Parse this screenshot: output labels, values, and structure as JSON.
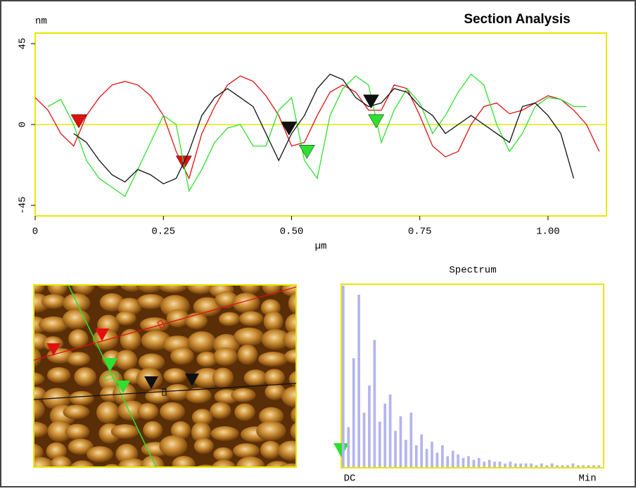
{
  "title": "Section Analysis",
  "chart_data": [
    {
      "type": "line",
      "ylabel": "nm",
      "xlabel": "µm",
      "x": [
        0,
        0.025,
        0.05,
        0.075,
        0.1,
        0.125,
        0.15,
        0.175,
        0.2,
        0.225,
        0.25,
        0.275,
        0.3,
        0.325,
        0.35,
        0.375,
        0.4,
        0.425,
        0.45,
        0.475,
        0.5,
        0.525,
        0.55,
        0.575,
        0.6,
        0.625,
        0.65,
        0.675,
        0.7,
        0.725,
        0.75,
        0.775,
        0.8,
        0.825,
        0.85,
        0.875,
        0.9,
        0.925,
        0.95,
        0.975,
        1.0,
        1.025,
        1.05,
        1.075,
        1.1
      ],
      "series": [
        {
          "color": "#e01010",
          "values": [
            15,
            8,
            -5,
            -12,
            5,
            15,
            22,
            24,
            22,
            16,
            5,
            -15,
            -30,
            -5,
            10,
            22,
            27,
            24,
            16,
            5,
            -12,
            -10,
            5,
            18,
            22,
            18,
            8,
            8,
            22,
            20,
            5,
            -12,
            -18,
            -15,
            0,
            10,
            12,
            6,
            8,
            12,
            16,
            14,
            8,
            0,
            -15
          ],
          "cursor_x": [
            0.085,
            0.29
          ],
          "cursor_y": [
            2,
            -21
          ]
        },
        {
          "color": "#30e030",
          "values": [
            null,
            10,
            14,
            0,
            -20,
            -30,
            -35,
            -40,
            -25,
            -10,
            5,
            0,
            -37,
            -25,
            -10,
            -2,
            0,
            -12,
            -12,
            8,
            15,
            -20,
            -30,
            5,
            20,
            27,
            22,
            -10,
            8,
            20,
            12,
            -5,
            5,
            18,
            28,
            22,
            0,
            -15,
            -5,
            10,
            15,
            14,
            10,
            10,
            null
          ],
          "cursor_x": [
            0.53,
            0.665
          ],
          "cursor_y": [
            -15,
            2
          ]
        },
        {
          "color": "#101010",
          "values": [
            null,
            null,
            null,
            -5,
            -10,
            -20,
            -28,
            -32,
            -25,
            -28,
            -33,
            -30,
            -15,
            5,
            15,
            20,
            15,
            10,
            -5,
            -20,
            -5,
            5,
            20,
            28,
            25,
            15,
            10,
            12,
            20,
            18,
            10,
            5,
            -5,
            0,
            5,
            0,
            -5,
            -10,
            10,
            12,
            5,
            -5,
            -30,
            null,
            null
          ],
          "cursor_x": [
            0.495,
            0.655
          ],
          "cursor_y": [
            -2,
            13
          ]
        }
      ],
      "xlim": [
        0,
        1.114
      ],
      "ylim": [
        -50.9,
        50.9
      ],
      "xticks": [
        0,
        0.25,
        {
          "value": 0.5,
          "label": "0.50"
        },
        0.75,
        {
          "value": 1,
          "label": "1.00"
        }
      ],
      "yticks": [
        45,
        0,
        -45
      ],
      "zero_line": true
    },
    {
      "type": "bar",
      "title": "Spectrum",
      "xtick_labels": [
        "DC",
        "Min"
      ],
      "color": "#b4b4f0",
      "ylim": [
        0,
        100
      ],
      "values": [
        100,
        22,
        60,
        95,
        30,
        45,
        70,
        25,
        35,
        40,
        20,
        28,
        15,
        30,
        12,
        18,
        10,
        14,
        8,
        12,
        6,
        9,
        7,
        5,
        6,
        4,
        5,
        3,
        4,
        3,
        3,
        2,
        3,
        2,
        2,
        2,
        2,
        1,
        2,
        1,
        2,
        1,
        1,
        1,
        2,
        1,
        1,
        1,
        1,
        1
      ]
    }
  ]
}
